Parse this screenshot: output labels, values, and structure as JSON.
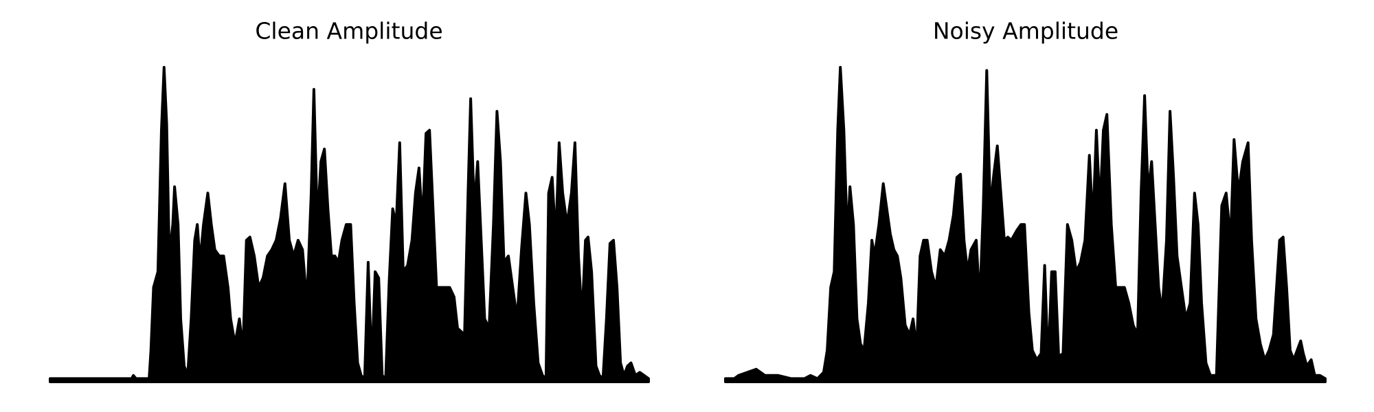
{
  "chart_data": [
    {
      "type": "area",
      "title": "Clean Amplitude",
      "color": "#000000",
      "xlim": [
        57,
        740
      ],
      "ylim": [
        0,
        1
      ],
      "x": [
        57,
        150,
        152,
        155,
        170,
        172,
        175,
        180,
        184,
        187,
        190,
        193,
        197,
        199,
        203,
        206,
        210,
        214,
        218,
        222,
        225,
        228,
        232,
        237,
        241,
        245,
        250,
        255,
        260,
        263,
        268,
        273,
        277,
        281,
        285,
        290,
        295,
        300,
        305,
        310,
        315,
        320,
        325,
        330,
        335,
        340,
        345,
        350,
        355,
        358,
        362,
        366,
        370,
        374,
        378,
        382,
        386,
        390,
        395,
        400,
        404,
        408,
        412,
        416,
        420,
        424,
        428,
        432,
        436,
        440,
        444,
        448,
        452,
        456,
        460,
        465,
        470,
        474,
        478,
        482,
        486,
        490,
        494,
        498,
        503,
        508,
        513,
        518,
        522,
        526,
        530,
        534,
        537,
        541,
        545,
        549,
        553,
        558,
        563,
        567,
        571,
        575,
        580,
        585,
        590,
        595,
        600,
        604,
        609,
        614,
        619,
        623,
        626,
        630,
        634,
        638,
        642,
        647,
        652,
        656,
        660,
        664,
        668,
        671,
        675,
        680,
        684,
        688,
        692,
        696,
        700,
        704,
        708,
        712,
        716,
        720,
        725,
        730,
        735,
        740
      ],
      "values": [
        0.01,
        0.01,
        0.02,
        0.01,
        0.01,
        0.1,
        0.3,
        0.35,
        0.8,
        1.0,
        0.82,
        0.4,
        0.5,
        0.62,
        0.5,
        0.2,
        0.05,
        0.02,
        0.2,
        0.45,
        0.5,
        0.38,
        0.5,
        0.6,
        0.5,
        0.42,
        0.4,
        0.4,
        0.3,
        0.2,
        0.12,
        0.2,
        0.1,
        0.45,
        0.46,
        0.4,
        0.3,
        0.33,
        0.4,
        0.42,
        0.45,
        0.52,
        0.63,
        0.45,
        0.4,
        0.45,
        0.42,
        0.25,
        0.6,
        0.93,
        0.5,
        0.7,
        0.74,
        0.55,
        0.4,
        0.4,
        0.38,
        0.45,
        0.5,
        0.5,
        0.25,
        0.06,
        0.02,
        0.01,
        0.38,
        0.05,
        0.35,
        0.33,
        0.02,
        0.01,
        0.32,
        0.55,
        0.5,
        0.76,
        0.35,
        0.37,
        0.45,
        0.6,
        0.68,
        0.5,
        0.79,
        0.8,
        0.55,
        0.3,
        0.3,
        0.3,
        0.3,
        0.27,
        0.17,
        0.16,
        0.15,
        0.6,
        0.9,
        0.55,
        0.7,
        0.45,
        0.2,
        0.17,
        0.5,
        0.86,
        0.7,
        0.38,
        0.4,
        0.3,
        0.2,
        0.42,
        0.6,
        0.5,
        0.25,
        0.06,
        0.02,
        0.01,
        0.6,
        0.65,
        0.45,
        0.76,
        0.6,
        0.5,
        0.6,
        0.76,
        0.4,
        0.2,
        0.45,
        0.46,
        0.35,
        0.05,
        0.02,
        0.01,
        0.2,
        0.44,
        0.45,
        0.3,
        0.06,
        0.02,
        0.05,
        0.06,
        0.02,
        0.03,
        0.02,
        0.01
      ]
    },
    {
      "type": "area",
      "title": "Noisy Amplitude",
      "color": "#000000",
      "xlim": [
        0,
        684
      ],
      "ylim": [
        0,
        1
      ],
      "x": [
        0,
        10,
        15,
        25,
        35,
        45,
        60,
        75,
        90,
        97,
        105,
        112,
        116,
        120,
        124,
        128,
        131,
        135,
        139,
        142,
        146,
        150,
        154,
        158,
        163,
        167,
        170,
        175,
        180,
        184,
        188,
        192,
        196,
        200,
        205,
        210,
        214,
        218,
        222,
        226,
        230,
        235,
        240,
        245,
        250,
        255,
        260,
        264,
        268,
        272,
        276,
        280,
        286,
        290,
        294,
        298,
        302,
        306,
        310,
        314,
        318,
        322,
        326,
        332,
        337,
        341,
        346,
        350,
        355,
        360,
        364,
        368,
        372,
        376,
        380,
        385,
        390,
        395,
        400,
        405,
        410,
        415,
        419,
        423,
        427,
        431,
        435,
        440,
        445,
        450,
        455,
        460,
        465,
        470,
        474,
        478,
        482,
        486,
        490,
        494,
        498,
        503,
        507,
        511,
        515,
        520,
        525,
        530,
        535,
        539,
        543,
        548,
        553,
        560,
        566,
        571,
        576,
        580,
        585,
        590,
        596,
        600,
        605,
        610,
        615,
        620,
        625,
        632,
        636,
        640,
        644,
        648,
        652,
        656,
        659,
        663,
        668,
        672,
        678,
        684
      ],
      "values": [
        0.01,
        0.01,
        0.02,
        0.03,
        0.04,
        0.02,
        0.02,
        0.01,
        0.01,
        0.02,
        0.01,
        0.03,
        0.1,
        0.3,
        0.35,
        0.8,
        1.0,
        0.8,
        0.45,
        0.62,
        0.5,
        0.2,
        0.12,
        0.1,
        0.25,
        0.45,
        0.4,
        0.5,
        0.63,
        0.55,
        0.47,
        0.42,
        0.4,
        0.33,
        0.18,
        0.15,
        0.2,
        0.1,
        0.4,
        0.45,
        0.45,
        0.35,
        0.3,
        0.42,
        0.4,
        0.45,
        0.53,
        0.65,
        0.66,
        0.45,
        0.35,
        0.42,
        0.45,
        0.25,
        0.55,
        0.99,
        0.55,
        0.66,
        0.75,
        0.6,
        0.45,
        0.46,
        0.45,
        0.48,
        0.5,
        0.5,
        0.22,
        0.1,
        0.07,
        0.09,
        0.37,
        0.05,
        0.35,
        0.35,
        0.08,
        0.09,
        0.5,
        0.45,
        0.35,
        0.38,
        0.45,
        0.72,
        0.5,
        0.8,
        0.55,
        0.8,
        0.85,
        0.5,
        0.3,
        0.3,
        0.3,
        0.25,
        0.18,
        0.15,
        0.6,
        0.91,
        0.6,
        0.7,
        0.5,
        0.3,
        0.22,
        0.45,
        0.86,
        0.65,
        0.4,
        0.3,
        0.2,
        0.25,
        0.6,
        0.5,
        0.25,
        0.06,
        0.02,
        0.02,
        0.56,
        0.6,
        0.45,
        0.77,
        0.6,
        0.7,
        0.76,
        0.45,
        0.2,
        0.12,
        0.07,
        0.1,
        0.15,
        0.45,
        0.46,
        0.3,
        0.1,
        0.07,
        0.1,
        0.13,
        0.09,
        0.05,
        0.07,
        0.02,
        0.02,
        0.01
      ]
    }
  ]
}
